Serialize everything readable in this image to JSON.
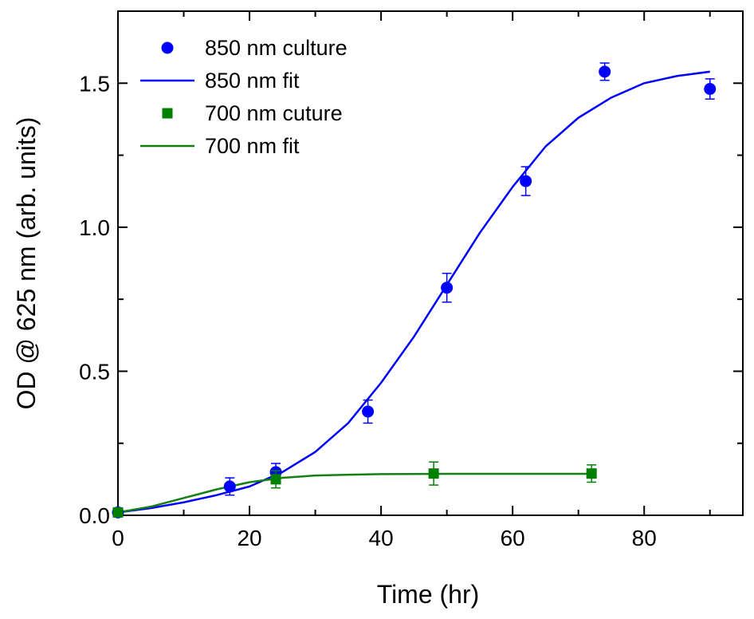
{
  "chart_data": {
    "type": "scatter",
    "title": "",
    "xlabel": "Time (hr)",
    "ylabel": "OD @ 625 nm (arb. units)",
    "xlim": [
      0,
      95
    ],
    "ylim": [
      0,
      1.75
    ],
    "xticks": [
      0,
      20,
      40,
      60,
      80
    ],
    "xtick_labels": [
      "0",
      "20",
      "40",
      "60",
      "80"
    ],
    "yticks": [
      0.0,
      0.5,
      1.0,
      1.5
    ],
    "ytick_labels": [
      "0.0",
      "0.5",
      "1.0",
      "1.5"
    ],
    "grid": false,
    "legend_position": "top-left",
    "series": [
      {
        "name": "850 nm culture",
        "kind": "points",
        "marker": "circle",
        "color": "#0000ff",
        "x": [
          0,
          17,
          24,
          38,
          50,
          62,
          74,
          90
        ],
        "y": [
          0.01,
          0.1,
          0.15,
          0.36,
          0.79,
          1.16,
          1.54,
          1.48
        ],
        "yerr": [
          0.01,
          0.03,
          0.03,
          0.04,
          0.05,
          0.05,
          0.03,
          0.035
        ]
      },
      {
        "name": "850 nm fit",
        "kind": "line",
        "color": "#0000ff",
        "x": [
          0,
          5,
          10,
          15,
          20,
          25,
          30,
          35,
          40,
          45,
          50,
          55,
          60,
          65,
          70,
          75,
          80,
          85,
          90
        ],
        "y": [
          0.01,
          0.025,
          0.045,
          0.07,
          0.1,
          0.15,
          0.22,
          0.32,
          0.46,
          0.62,
          0.8,
          0.98,
          1.14,
          1.28,
          1.38,
          1.45,
          1.5,
          1.525,
          1.54
        ]
      },
      {
        "name": "700 nm cuture",
        "kind": "points",
        "marker": "square",
        "color": "#008000",
        "x": [
          0,
          24,
          48,
          72
        ],
        "y": [
          0.01,
          0.125,
          0.145,
          0.145
        ],
        "yerr": [
          0.01,
          0.03,
          0.04,
          0.03
        ]
      },
      {
        "name": "700 nm fit",
        "kind": "line",
        "color": "#138013",
        "x": [
          0,
          5,
          10,
          15,
          20,
          25,
          30,
          35,
          40,
          50,
          60,
          72
        ],
        "y": [
          0.01,
          0.03,
          0.06,
          0.09,
          0.115,
          0.13,
          0.138,
          0.141,
          0.143,
          0.144,
          0.144,
          0.144
        ]
      }
    ]
  }
}
